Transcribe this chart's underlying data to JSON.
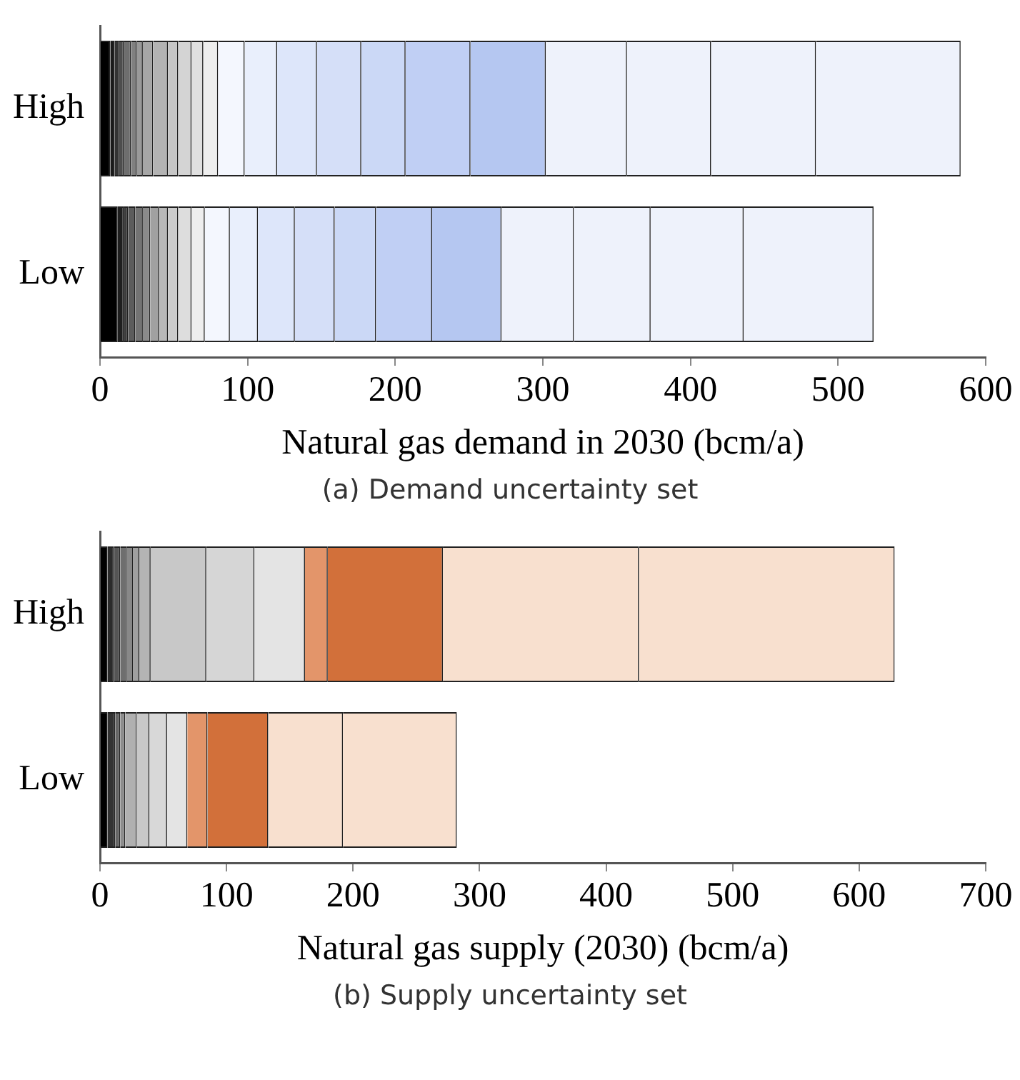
{
  "chart_data": [
    {
      "type": "bar",
      "orientation": "horizontal",
      "stacked": true,
      "categories": [
        "High",
        "Low"
      ],
      "xlabel": "Natural gas demand in 2030 (bcm/a)",
      "xlim": [
        0,
        600
      ],
      "xticks": [
        0,
        100,
        200,
        300,
        400,
        500,
        600
      ],
      "grid": false,
      "legend": false,
      "annotations": [
        "(a) Demand uncertainty set"
      ],
      "series": [
        {
          "values": [
            7,
            12
          ],
          "colors": [
            "#000000",
            "#000000"
          ]
        },
        {
          "values": [
            3,
            4
          ],
          "colors": [
            "#1a1a1a",
            "#1f1f1f"
          ]
        },
        {
          "values": [
            3,
            3
          ],
          "colors": [
            "#333333",
            "#3d3d3d"
          ]
        },
        {
          "values": [
            3,
            5
          ],
          "colors": [
            "#4d4d4d",
            "#5c5c5c"
          ]
        },
        {
          "values": [
            null,
            5
          ],
          "colors": [
            "#666666",
            "#737373"
          ]
        },
        {
          "values": [
            5,
            5
          ],
          "colors": [
            "#6e6e6e",
            "#8a8a8a"
          ]
        },
        {
          "values": [
            4,
            6
          ],
          "colors": [
            "#808080",
            "#a1a1a1"
          ]
        },
        {
          "values": [
            4,
            6
          ],
          "colors": [
            "#999999",
            "#b8b8b8"
          ]
        },
        {
          "values": [
            7,
            7
          ],
          "colors": [
            "#a6a6a6",
            "#cccccc"
          ]
        },
        {
          "values": [
            10,
            9
          ],
          "colors": [
            "#b3b3b3",
            "#dddddd"
          ]
        },
        {
          "values": [
            7,
            9
          ],
          "colors": [
            "#c6c6c6",
            "#eeeeee"
          ]
        },
        {
          "values": [
            9,
            null
          ],
          "colors": [
            "#d4d4d4",
            "#eeeeee"
          ]
        },
        {
          "values": [
            8,
            null
          ],
          "colors": [
            "#e0e0e0",
            "#eeeeee"
          ]
        },
        {
          "values": [
            10,
            null
          ],
          "colors": [
            "#eeeeee",
            "#eeeeee"
          ]
        },
        {
          "values": [
            18,
            17
          ],
          "colors": [
            "#f4f7fe",
            "#f4f7fe"
          ]
        },
        {
          "values": [
            22,
            19
          ],
          "colors": [
            "#e9effc",
            "#e9effc"
          ]
        },
        {
          "values": [
            27,
            25
          ],
          "colors": [
            "#dde6fa",
            "#dde6fa"
          ]
        },
        {
          "values": [
            30,
            27
          ],
          "colors": [
            "#d5dff8",
            "#d5dff8"
          ]
        },
        {
          "values": [
            30,
            28
          ],
          "colors": [
            "#cbd8f6",
            "#cbd8f6"
          ]
        },
        {
          "values": [
            44,
            38
          ],
          "colors": [
            "#c0cff4",
            "#c0cff4"
          ]
        },
        {
          "values": [
            51,
            47
          ],
          "colors": [
            "#b5c7f1",
            "#b5c7f1"
          ]
        },
        {
          "values": [
            55,
            49
          ],
          "colors": [
            "#eef2fb",
            "#eef2fb"
          ]
        },
        {
          "values": [
            57,
            52
          ],
          "colors": [
            "#eef2fb",
            "#eef2fb"
          ]
        },
        {
          "values": [
            71,
            63
          ],
          "colors": [
            "#eef2fb",
            "#eef2fb"
          ]
        },
        {
          "values": [
            98,
            88
          ],
          "colors": [
            "#eef2fb",
            "#eef2fb"
          ]
        }
      ]
    },
    {
      "type": "bar",
      "orientation": "horizontal",
      "stacked": true,
      "categories": [
        "High",
        "Low"
      ],
      "xlabel": "Natural gas supply (2030) (bcm/a)",
      "xlim": [
        0,
        700
      ],
      "xticks": [
        0,
        100,
        200,
        300,
        400,
        500,
        600,
        700
      ],
      "grid": false,
      "legend": false,
      "annotations": [
        "(b) Supply uncertainty set"
      ],
      "series": [
        {
          "values": [
            6,
            6
          ],
          "colors": [
            "#000000",
            "#000000"
          ]
        },
        {
          "values": [
            5,
            6
          ],
          "colors": [
            "#2b2b2b",
            "#333333"
          ]
        },
        {
          "values": [
            5,
            4
          ],
          "colors": [
            "#555555",
            "#666666"
          ]
        },
        {
          "values": [
            5,
            4
          ],
          "colors": [
            "#6e6e6e",
            "#8c8c8c"
          ]
        },
        {
          "values": [
            5,
            9
          ],
          "colors": [
            "#888888",
            "#b0b0b0"
          ]
        },
        {
          "values": [
            5,
            10
          ],
          "colors": [
            "#a0a0a0",
            "#c8c8c8"
          ]
        },
        {
          "values": [
            9,
            14
          ],
          "colors": [
            "#b4b4b4",
            "#d8d8d8"
          ]
        },
        {
          "values": [
            44,
            16
          ],
          "colors": [
            "#c8c8c8",
            "#e4e4e4"
          ]
        },
        {
          "values": [
            38,
            null
          ],
          "colors": [
            "#d6d6d6",
            "#e4e4e4"
          ]
        },
        {
          "values": [
            40,
            null
          ],
          "colors": [
            "#e4e4e4",
            "#e4e4e4"
          ]
        },
        {
          "values": [
            18,
            16
          ],
          "colors": [
            "#e3956a",
            "#e3956a"
          ]
        },
        {
          "values": [
            91,
            48
          ],
          "colors": [
            "#d2703a",
            "#d2703a"
          ]
        },
        {
          "values": [
            155,
            59
          ],
          "colors": [
            "#f8e0cf",
            "#f8e0cf"
          ]
        },
        {
          "values": [
            202,
            90
          ],
          "colors": [
            "#f8e0cf",
            "#f8e0cf"
          ]
        }
      ]
    }
  ]
}
